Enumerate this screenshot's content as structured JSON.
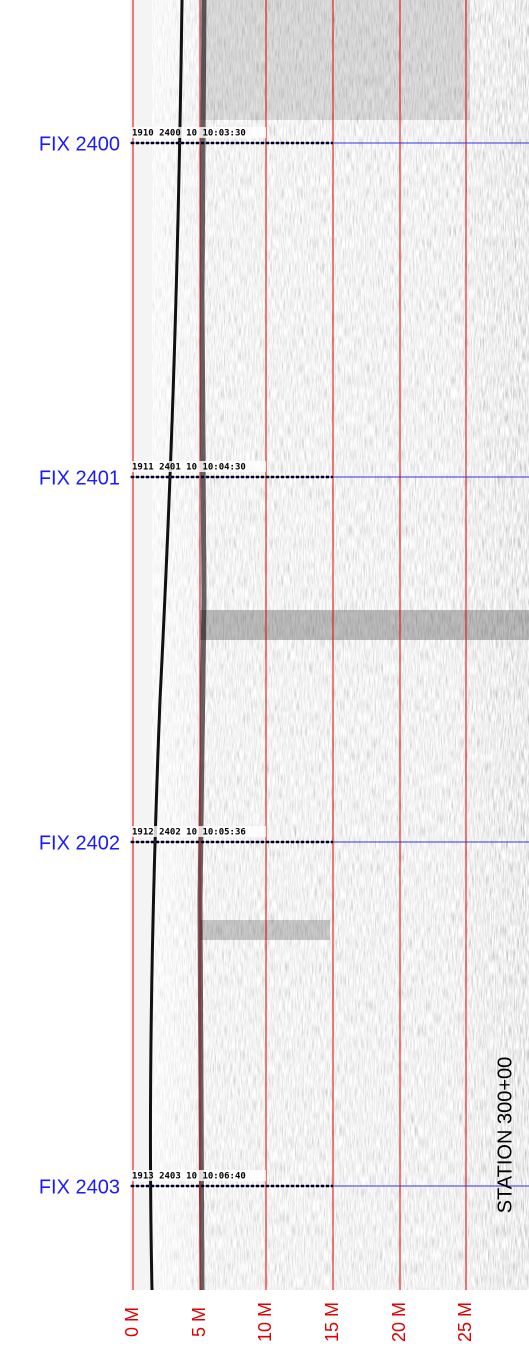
{
  "fixes": [
    {
      "label": "FIX 2400",
      "stamp": "1910 2400 10 10:03:30"
    },
    {
      "label": "FIX 2401",
      "stamp": "1911 2401 10 10:04:30"
    },
    {
      "label": "FIX 2402",
      "stamp": "1912 2402 10 10:05:36"
    },
    {
      "label": "FIX 2403",
      "stamp": "1913 2403 10 10:06:40"
    }
  ],
  "distance_labels": [
    "0 M",
    "5 M",
    "10 M",
    "15 M",
    "20 M",
    "25 M"
  ],
  "station": "STATION 300+00"
}
